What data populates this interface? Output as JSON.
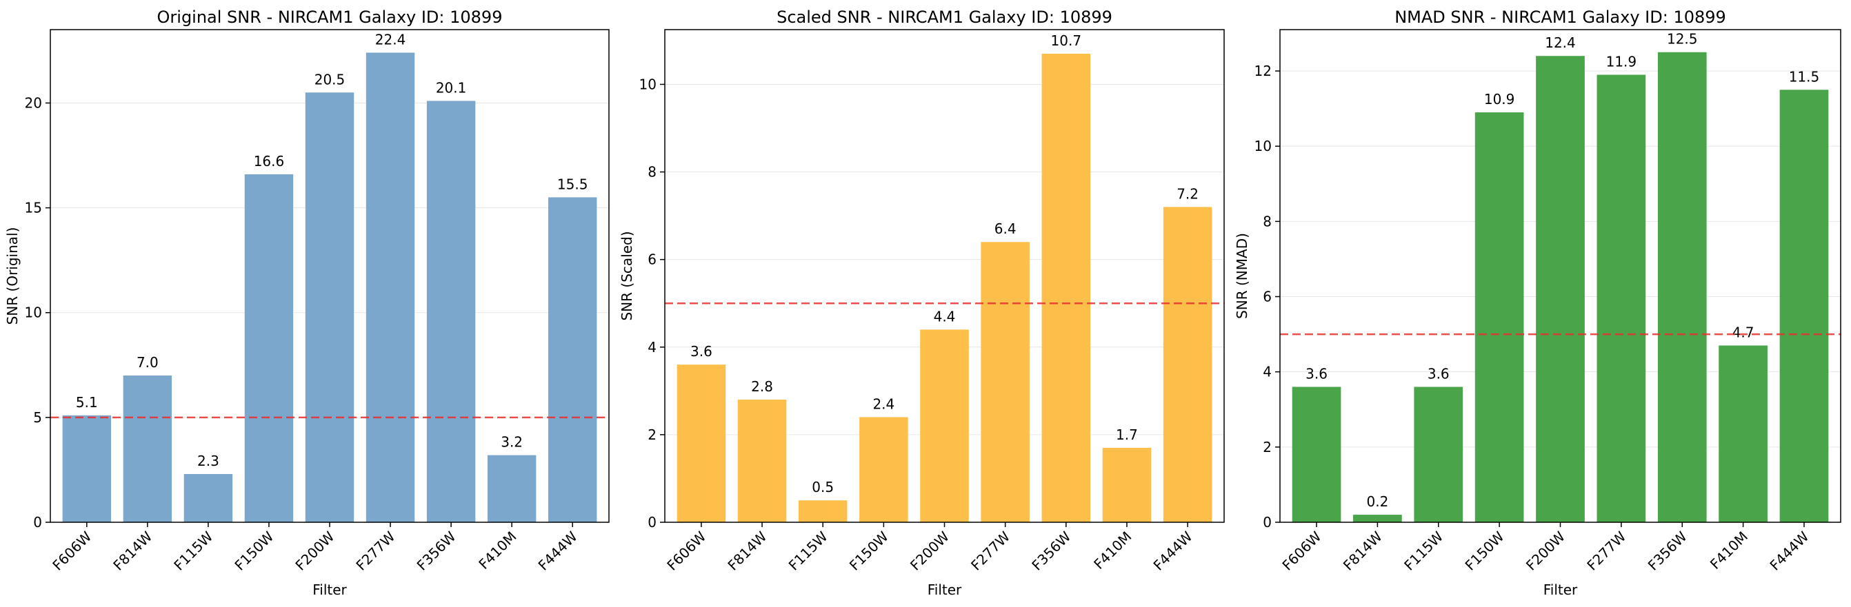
{
  "chart_data": [
    {
      "type": "bar",
      "title": "Original SNR - NIRCAM1 Galaxy ID: 10899",
      "xlabel": "Filter",
      "ylabel": "SNR (Original)",
      "categories": [
        "F606W",
        "F814W",
        "F115W",
        "F150W",
        "F200W",
        "F277W",
        "F356W",
        "F410M",
        "F444W"
      ],
      "values": [
        5.1,
        7.0,
        2.3,
        16.6,
        20.5,
        22.4,
        20.1,
        3.2,
        15.5
      ],
      "value_labels": [
        "5.1",
        "7.0",
        "2.3",
        "16.6",
        "20.5",
        "22.4",
        "20.1",
        "3.2",
        "15.5"
      ],
      "ylim": [
        0,
        23.5
      ],
      "yticks": [
        0,
        5,
        10,
        15,
        20
      ],
      "threshold": 5,
      "bar_color": "#7ba7cc",
      "threshold_color": "#e8302f",
      "grid": "y"
    },
    {
      "type": "bar",
      "title": "Scaled SNR - NIRCAM1 Galaxy ID: 10899",
      "xlabel": "Filter",
      "ylabel": "SNR (Scaled)",
      "categories": [
        "F606W",
        "F814W",
        "F115W",
        "F150W",
        "F200W",
        "F277W",
        "F356W",
        "F410M",
        "F444W"
      ],
      "values": [
        3.6,
        2.8,
        0.5,
        2.4,
        4.4,
        6.4,
        10.7,
        1.7,
        7.2
      ],
      "value_labels": [
        "3.6",
        "2.8",
        "0.5",
        "2.4",
        "4.4",
        "6.4",
        "10.7",
        "1.7",
        "7.2"
      ],
      "ylim": [
        0,
        11.25
      ],
      "yticks": [
        0,
        2,
        4,
        6,
        8,
        10
      ],
      "threshold": 5,
      "bar_color": "#febe4a",
      "threshold_color": "#e8302f",
      "grid": "y"
    },
    {
      "type": "bar",
      "title": "NMAD SNR - NIRCAM1 Galaxy ID: 10899",
      "xlabel": "Filter",
      "ylabel": "SNR (NMAD)",
      "categories": [
        "F606W",
        "F814W",
        "F115W",
        "F150W",
        "F200W",
        "F277W",
        "F356W",
        "F410M",
        "F444W"
      ],
      "values": [
        3.6,
        0.2,
        3.6,
        10.9,
        12.4,
        11.9,
        12.5,
        4.7,
        11.5
      ],
      "value_labels": [
        "3.6",
        "0.2",
        "3.6",
        "10.9",
        "12.4",
        "11.9",
        "12.5",
        "4.7",
        "11.5"
      ],
      "ylim": [
        0,
        13.1
      ],
      "yticks": [
        0,
        2,
        4,
        6,
        8,
        10,
        12
      ],
      "threshold": 5,
      "bar_color": "#4aa54a",
      "threshold_color": "#e8302f",
      "grid": "y"
    }
  ]
}
